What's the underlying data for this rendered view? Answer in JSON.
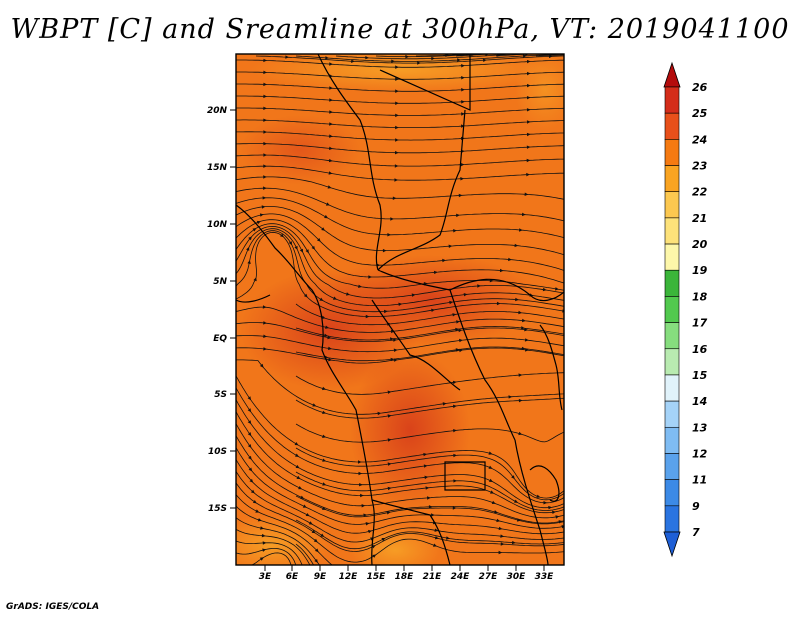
{
  "title": "WBPT [C] and Sreamline at 300hPa, VT: 2019041100",
  "footer": "GrADS: IGES/COLA",
  "map": {
    "lat_labels": [
      "20N",
      "15N",
      "10N",
      "5N",
      "EQ",
      "5S",
      "10S",
      "15S"
    ],
    "lon_labels": [
      "3E",
      "6E",
      "9E",
      "12E",
      "15E",
      "18E",
      "21E",
      "24E",
      "27E",
      "30E",
      "33E"
    ]
  },
  "colorbar": {
    "levels": [
      "7",
      "9",
      "11",
      "12",
      "13",
      "14",
      "15",
      "16",
      "17",
      "18",
      "19",
      "20",
      "21",
      "22",
      "23",
      "24",
      "25",
      "26"
    ],
    "colors": [
      "#1e5fd6",
      "#2a74e0",
      "#3c8ae6",
      "#5aa2ec",
      "#7fbcf3",
      "#a5d3f8",
      "#e1f3fb",
      "#b9ebb1",
      "#86dd7e",
      "#52c94e",
      "#3bb53a",
      "#fdf7aa",
      "#fde27a",
      "#fcc850",
      "#f9a422",
      "#f57a12",
      "#e8501a",
      "#d42d1a",
      "#b40c0c"
    ]
  }
}
